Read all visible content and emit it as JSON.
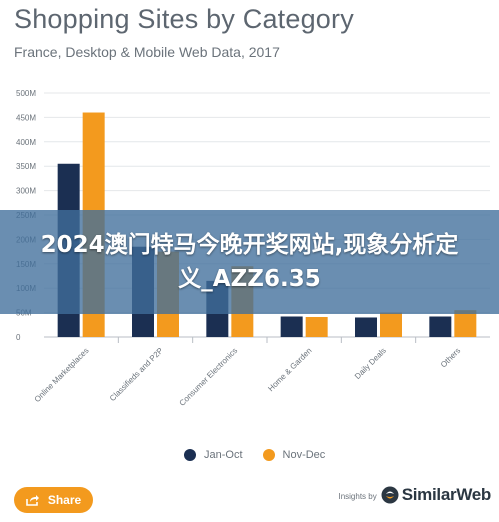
{
  "header": {
    "title": "Shopping Sites by Category",
    "subtitle": "France, Desktop & Mobile Web Data, 2017"
  },
  "overlay": {
    "text": "2024澳门特马今晚开奖网站,现象分析定义_AZZ6.35"
  },
  "chart_data": {
    "type": "bar",
    "categories": [
      "Online Marketplaces",
      "Classifieds and P2P",
      "Consumer Electronics",
      "Home & Garden",
      "Daily Deals",
      "Others"
    ],
    "series": [
      {
        "name": "Jan-Oct",
        "color": "#1b2f52",
        "values": [
          355,
          185,
          115,
          42,
          40,
          42
        ]
      },
      {
        "name": "Nov-Dec",
        "color": "#f39a1e",
        "values": [
          460,
          175,
          145,
          41,
          50,
          55
        ]
      }
    ],
    "y_ticks": [
      "0",
      "50M",
      "100M",
      "150M",
      "200M",
      "250M",
      "300M",
      "350M",
      "400M",
      "450M",
      "500M"
    ],
    "ylim": [
      0,
      500
    ],
    "grid": true,
    "legend_position": "bottom"
  },
  "legend": {
    "items": [
      {
        "label": "Jan-Oct",
        "color": "#1b2f52"
      },
      {
        "label": "Nov-Dec",
        "color": "#f39a1e"
      }
    ]
  },
  "footer": {
    "share_label": "Share",
    "insights_label": "Insights by",
    "brand_name": "SimilarWeb",
    "share_icon": "share-icon",
    "brand_icon": "similarweb-logo-icon"
  },
  "colors": {
    "accent": "#f39a1e",
    "primary": "#1b2f52",
    "banner": "#406e9b"
  }
}
